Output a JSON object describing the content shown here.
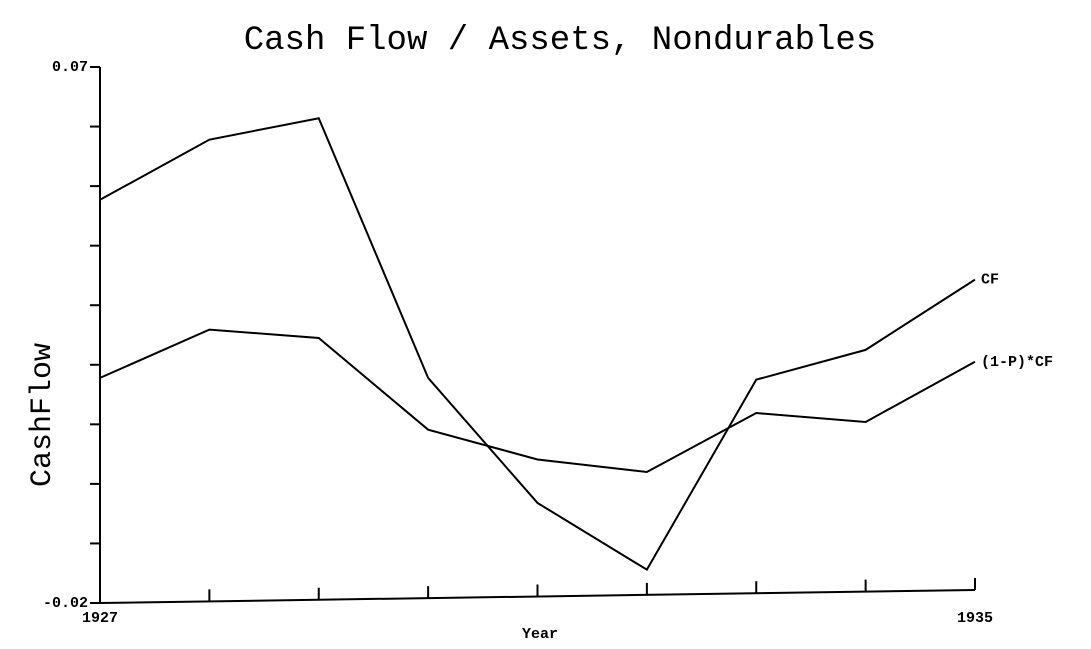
{
  "chart_data": {
    "type": "line",
    "title": "Cash Flow / Assets, Nondurables",
    "x_label": "Year",
    "y_label": "CashFlow",
    "x": [
      1927,
      1928,
      1929,
      1930,
      1931,
      1932,
      1933,
      1934,
      1935
    ],
    "series": [
      {
        "name": "CF",
        "color": "#000000",
        "values": [
          0.0477,
          0.0578,
          0.0614,
          0.0178,
          -0.0032,
          -0.0144,
          0.0175,
          0.0225,
          0.0343
        ]
      },
      {
        "name": "(1-P)*CF",
        "color": "#000000",
        "values": [
          0.0178,
          0.0259,
          0.0245,
          0.0091,
          0.0041,
          0.002,
          0.0119,
          0.0104,
          0.0205
        ]
      }
    ],
    "xlim": [
      1927,
      1935
    ],
    "xticks": [
      1927,
      1935
    ],
    "xminorticks": [
      1928,
      1929,
      1930,
      1931,
      1932,
      1933,
      1934
    ],
    "ylim": [
      -0.02,
      0.07
    ],
    "yticks": [
      -0.02,
      0.07
    ],
    "yminorticks": [
      -0.01,
      0,
      0.01,
      0.02,
      0.03,
      0.04,
      0.05,
      0.06
    ],
    "grid": false
  }
}
